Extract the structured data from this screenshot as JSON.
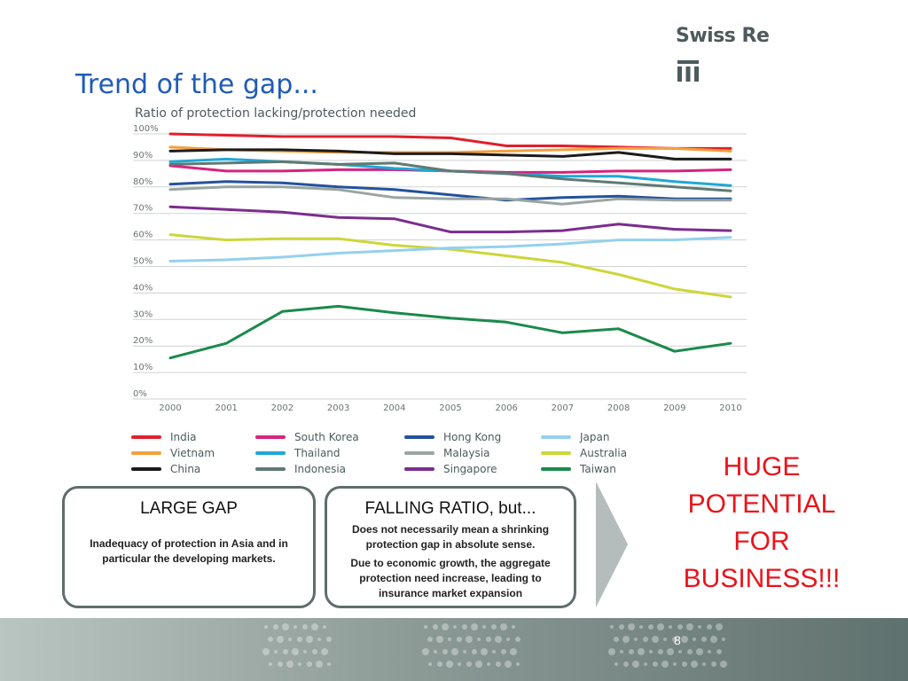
{
  "header": {
    "logo_text": "Swiss Re",
    "title": "Trend of the gap..."
  },
  "chart_data": {
    "type": "line",
    "title": "Ratio of protection lacking/protection needed",
    "xlabel": "",
    "ylabel": "",
    "x": [
      2000,
      2001,
      2002,
      2003,
      2004,
      2005,
      2006,
      2007,
      2008,
      2009,
      2010
    ],
    "y_ticks": [
      "0%",
      "10%",
      "20%",
      "30%",
      "40%",
      "50%",
      "60%",
      "70%",
      "80%",
      "90%",
      "100%"
    ],
    "ylim": [
      0,
      100
    ],
    "grid": true,
    "legend_position": "bottom",
    "series": [
      {
        "name": "India",
        "color": "#e0202c",
        "values": [
          100,
          99.5,
          99,
          99,
          99,
          98.5,
          95.5,
          95.5,
          95,
          94.5,
          94.5
        ]
      },
      {
        "name": "Vietnam",
        "color": "#f2a03d",
        "values": [
          95,
          94,
          93.5,
          93,
          93,
          93,
          93.5,
          94,
          94.5,
          94.5,
          93.5
        ]
      },
      {
        "name": "China",
        "color": "#1b1b1b",
        "values": [
          93.5,
          94,
          94,
          93.5,
          92.5,
          92.5,
          92,
          91.5,
          93,
          90.5,
          90.5
        ]
      },
      {
        "name": "South Korea",
        "color": "#d6237f",
        "values": [
          88,
          86,
          86,
          86.5,
          86.5,
          86,
          85.5,
          85.5,
          86,
          86,
          86.5
        ]
      },
      {
        "name": "Thailand",
        "color": "#20a7d6",
        "values": [
          89.5,
          90.5,
          89.5,
          88.5,
          87,
          86,
          85,
          84,
          84,
          82,
          80.5
        ]
      },
      {
        "name": "Indonesia",
        "color": "#5f7a74",
        "values": [
          88.5,
          89,
          89.5,
          88.5,
          89,
          86,
          85,
          83,
          81.5,
          80,
          78.5
        ]
      },
      {
        "name": "Hong Kong",
        "color": "#24529c",
        "values": [
          81,
          82,
          81.5,
          80,
          79,
          77,
          75,
          76,
          76.5,
          75.5,
          75.5
        ]
      },
      {
        "name": "Malaysia",
        "color": "#9aa5a2",
        "values": [
          79,
          80,
          80,
          79,
          76,
          75.5,
          75.5,
          73.5,
          75.5,
          75,
          75
        ]
      },
      {
        "name": "Singapore",
        "color": "#7b2d8e",
        "values": [
          72.5,
          71.5,
          70.5,
          68.5,
          68,
          63,
          63,
          63.5,
          66,
          64,
          63.5
        ]
      },
      {
        "name": "Australia",
        "color": "#cdd63a",
        "values": [
          62,
          60,
          60.5,
          60.5,
          58,
          56.5,
          54,
          51.5,
          47,
          41.5,
          38.5
        ]
      },
      {
        "name": "Japan",
        "color": "#94d0ee",
        "values": [
          52,
          52.5,
          53.5,
          55,
          56,
          57,
          57.5,
          58.5,
          60,
          60,
          61
        ]
      },
      {
        "name": "Taiwan",
        "color": "#1a8a4b",
        "values": [
          15.5,
          21,
          33,
          35,
          32.5,
          30.5,
          29,
          25,
          26.5,
          18,
          21
        ]
      }
    ]
  },
  "legend_order": [
    "India",
    "South Korea",
    "Hong Kong",
    "Japan",
    "Vietnam",
    "Thailand",
    "Malaysia",
    "Australia",
    "China",
    "Indonesia",
    "Singapore",
    "Taiwan"
  ],
  "boxes": {
    "large_gap": {
      "title": "LARGE GAP",
      "text": "Inadequacy of protection in Asia and in particular the developing markets."
    },
    "falling_ratio": {
      "title": "FALLING RATIO, but...",
      "text_1": "Does not necessarily mean a shrinking protection gap in absolute sense.",
      "text_2": "Due to economic growth, the aggregate protection need increase, leading to insurance market expansion"
    }
  },
  "callout": {
    "line_1": "HUGE",
    "line_2": "POTENTIAL",
    "line_3": "FOR",
    "line_4": "BUSINESS!!!"
  },
  "footer": {
    "page_number": "8"
  }
}
